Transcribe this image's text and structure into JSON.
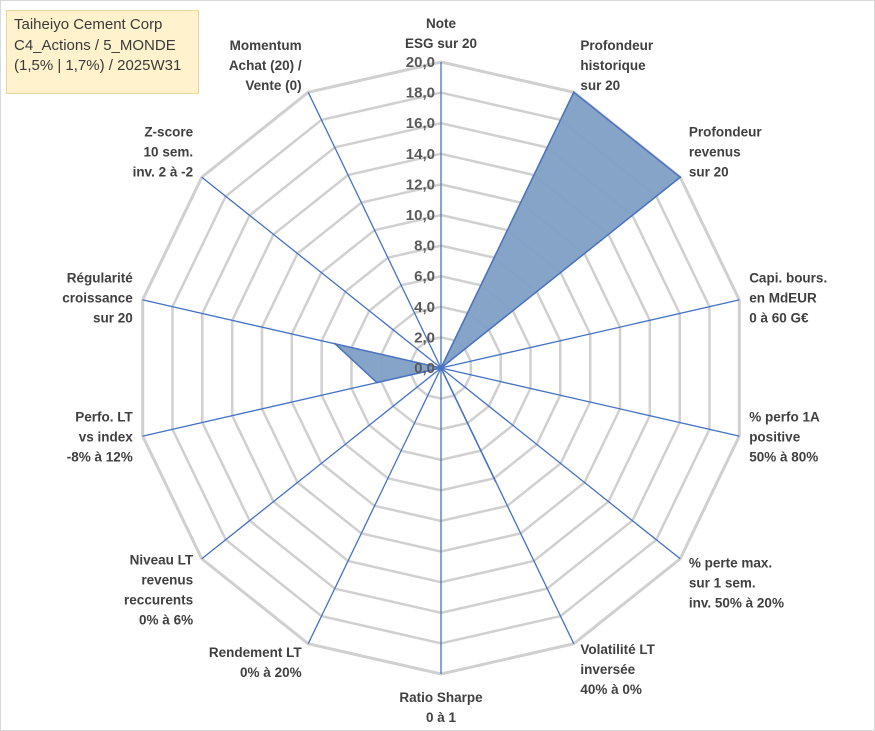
{
  "title_box": {
    "line1": "Taiheiyo Cement Corp",
    "line2": "C4_Actions / 5_MONDE",
    "line3": "(1,5% | 1,7%) / 2025W31"
  },
  "chart_data": {
    "type": "radar",
    "axes": [
      [
        "Note",
        "ESG sur 20"
      ],
      [
        "Profondeur",
        "historique",
        "sur 20"
      ],
      [
        "Profondeur",
        "revenus",
        "sur 20"
      ],
      [
        "Capi. bours.",
        "en MdEUR",
        "0 à 60 G€"
      ],
      [
        "% perfo 1A",
        "positive",
        "50% à 80%"
      ],
      [
        "% perte max.",
        "sur 1 sem.",
        "inv. 50% à 20%"
      ],
      [
        "Volatilité LT",
        "inversée",
        "40% à 0%"
      ],
      [
        "Ratio Sharpe",
        "0 à 1"
      ],
      [
        "Rendement LT",
        "0% à 20%"
      ],
      [
        "Niveau LT",
        "revenus",
        "reccurents",
        "0% à 6%"
      ],
      [
        "Perfo. LT",
        "vs index",
        "-8% à 12%"
      ],
      [
        "Régularité",
        "croissance",
        "sur 20"
      ],
      [
        "Z-score",
        "10 sem.",
        "inv. 2 à -2"
      ],
      [
        "Momentum",
        "Achat (20) /",
        "Vente (0)"
      ]
    ],
    "values": [
      0,
      20,
      20,
      0,
      0,
      0,
      8.2,
      0,
      0,
      0,
      4.3,
      7.1,
      0,
      0
    ],
    "rmin": 0,
    "rmax": 20,
    "ticks": [
      "0,0",
      "2,0",
      "4,0",
      "6,0",
      "8,0",
      "10,0",
      "12,0",
      "14,0",
      "16,0",
      "18,0",
      "20,0"
    ],
    "fill_color": "#7f9fc4",
    "line_color": "#4a73c0",
    "grid_color": "#d0d0d0",
    "spoke_color": "#4472c4",
    "grid": true
  }
}
